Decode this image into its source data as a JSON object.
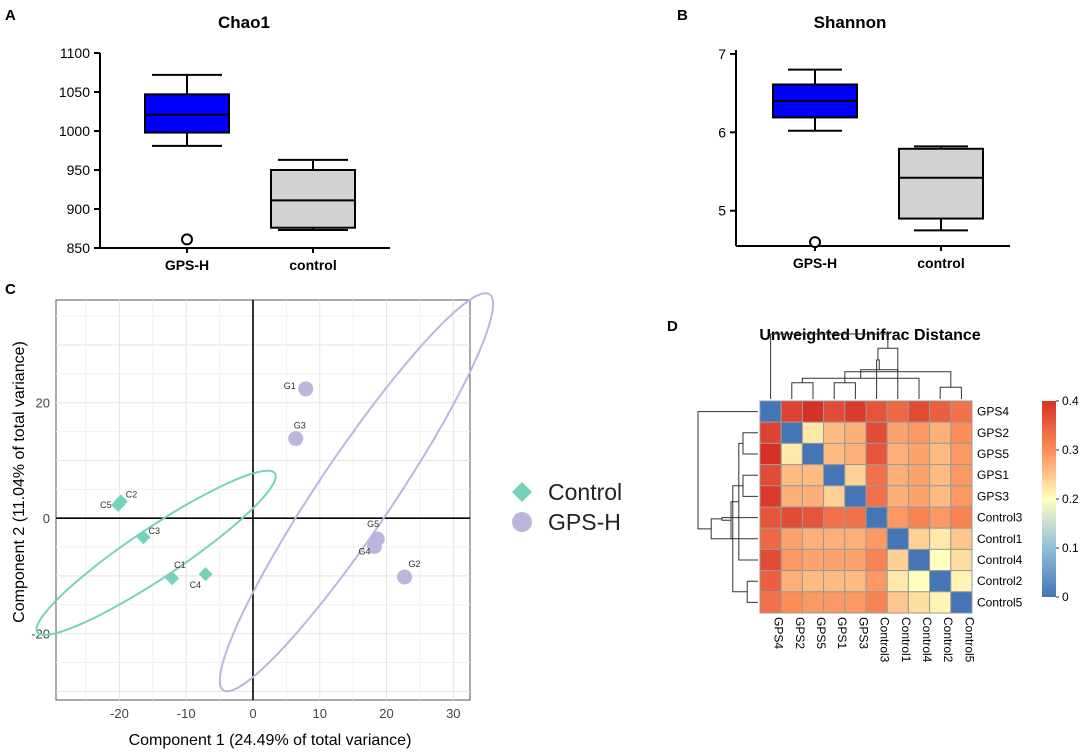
{
  "panels": {
    "a": {
      "label": "A"
    },
    "b": {
      "label": "B"
    },
    "c": {
      "label": "C"
    },
    "d": {
      "label": "D"
    }
  },
  "colors": {
    "gps_box": "#0000ff",
    "control_box": "#d3d3d3",
    "control_points": "#76d1bd",
    "gps_points": "#bdb6dc"
  },
  "chart_data": [
    {
      "id": "chao1",
      "type": "box",
      "title": "Chao1",
      "xlabel": "",
      "ylabel": "",
      "ylim": [
        850,
        1100
      ],
      "yticks": [
        850,
        900,
        950,
        1000,
        1050,
        1100
      ],
      "categories": [
        "GPS-H",
        "control"
      ],
      "boxes": [
        {
          "name": "GPS-H",
          "min": 981,
          "q1": 998,
          "median": 1021,
          "q3": 1047,
          "max": 1072,
          "outliers": [
            861
          ],
          "color": "#0000ff"
        },
        {
          "name": "control",
          "min": 873,
          "q1": 876,
          "median": 911,
          "q3": 950,
          "max": 963,
          "outliers": [],
          "color": "#d3d3d3"
        }
      ]
    },
    {
      "id": "shannon",
      "type": "box",
      "title": "Shannon",
      "xlabel": "",
      "ylabel": "",
      "ylim": [
        4.55,
        7.05
      ],
      "yticks": [
        5,
        6,
        7
      ],
      "categories": [
        "GPS-H",
        "control"
      ],
      "boxes": [
        {
          "name": "GPS-H",
          "min": 6.02,
          "q1": 6.19,
          "median": 6.4,
          "q3": 6.61,
          "max": 6.8,
          "outliers": [
            4.6
          ],
          "color": "#0000ff"
        },
        {
          "name": "control",
          "min": 4.75,
          "q1": 4.9,
          "median": 5.42,
          "q3": 5.79,
          "max": 5.82,
          "outliers": [],
          "color": "#d3d3d3"
        }
      ]
    },
    {
      "id": "pca",
      "type": "scatter",
      "title": "",
      "xlabel": "Component 1 (24.49% of total variance)",
      "ylabel": "Component 2 (11.04% of total variance)",
      "xlim": [
        -29.5,
        32.5
      ],
      "ylim": [
        -31.5,
        37.8
      ],
      "xticks": [
        -20,
        -10,
        0,
        10,
        20,
        30
      ],
      "yticks": [
        -20,
        0,
        20
      ],
      "grid": true,
      "legend": "right",
      "series": [
        {
          "name": "Control",
          "marker": "diamond",
          "color": "#76d1bd",
          "points": [
            {
              "label": "C2",
              "x": -19.8,
              "y": 2.9
            },
            {
              "label": "C5",
              "x": -20.2,
              "y": 2.3
            },
            {
              "label": "C3",
              "x": -16.4,
              "y": -3.3
            },
            {
              "label": "C1",
              "x": -12.1,
              "y": -10.4
            },
            {
              "label": "C4",
              "x": -7.1,
              "y": -9.7
            }
          ]
        },
        {
          "name": "GPS-H",
          "marker": "circle",
          "color": "#bdb6dc",
          "points": [
            {
              "label": "G1",
              "x": 7.9,
              "y": 22.4
            },
            {
              "label": "G3",
              "x": 6.4,
              "y": 13.8
            },
            {
              "label": "G5",
              "x": 18.6,
              "y": -3.6
            },
            {
              "label": "G4",
              "x": 18.2,
              "y": -4.9
            },
            {
              "label": "G2",
              "x": 22.7,
              "y": -10.2
            }
          ]
        }
      ],
      "ellipses": [
        {
          "series": "Control",
          "cx": -14.5,
          "cy": -6.0,
          "rx": 22.5,
          "ry": 4.1,
          "angle_deg": -38
        },
        {
          "series": "GPS-H",
          "cx": 15.5,
          "cy": 4.5,
          "rx": 39.7,
          "ry": 5.8,
          "angle_deg": -60
        }
      ]
    },
    {
      "id": "unifrac",
      "type": "heatmap",
      "title": "Unweighted Unifrac Distance",
      "samples": [
        "GPS4",
        "GPS2",
        "GPS5",
        "GPS1",
        "GPS3",
        "Control3",
        "Control1",
        "Control4",
        "Control2",
        "Control5"
      ],
      "colorbar": {
        "min": 0,
        "max": 0.4,
        "ticks": [
          "0",
          "0.1",
          "0.2",
          "0.3",
          "0.4"
        ]
      },
      "values": [
        [
          0.0,
          0.38,
          0.4,
          0.37,
          0.39,
          0.36,
          0.34,
          0.37,
          0.35,
          0.33
        ],
        [
          0.38,
          0.0,
          0.22,
          0.26,
          0.27,
          0.37,
          0.28,
          0.29,
          0.27,
          0.3
        ],
        [
          0.4,
          0.22,
          0.0,
          0.26,
          0.27,
          0.36,
          0.27,
          0.28,
          0.26,
          0.29
        ],
        [
          0.37,
          0.26,
          0.26,
          0.0,
          0.24,
          0.33,
          0.27,
          0.28,
          0.26,
          0.29
        ],
        [
          0.39,
          0.27,
          0.27,
          0.24,
          0.0,
          0.33,
          0.27,
          0.28,
          0.26,
          0.29
        ],
        [
          0.36,
          0.37,
          0.36,
          0.33,
          0.33,
          0.0,
          0.29,
          0.31,
          0.29,
          0.31
        ],
        [
          0.34,
          0.28,
          0.27,
          0.27,
          0.27,
          0.29,
          0.0,
          0.24,
          0.22,
          0.25
        ],
        [
          0.37,
          0.29,
          0.28,
          0.28,
          0.28,
          0.31,
          0.24,
          0.0,
          0.2,
          0.23
        ],
        [
          0.35,
          0.27,
          0.26,
          0.26,
          0.26,
          0.29,
          0.22,
          0.2,
          0.0,
          0.21
        ],
        [
          0.33,
          0.3,
          0.29,
          0.29,
          0.29,
          0.31,
          0.25,
          0.23,
          0.21,
          0.0
        ]
      ]
    }
  ]
}
